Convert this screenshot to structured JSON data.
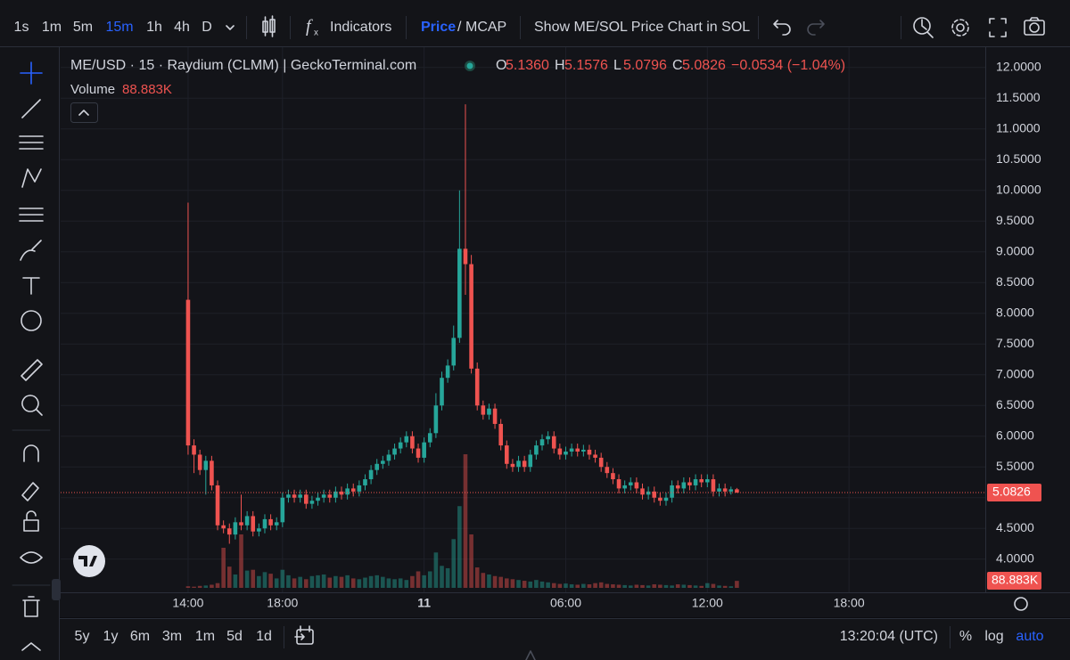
{
  "toolbar": {
    "intervals": [
      "1s",
      "1m",
      "5m",
      "15m",
      "1h",
      "4h",
      "D"
    ],
    "indicators": "Indicators",
    "price": "Price",
    "slash": "/",
    "mcap": "MCAP",
    "show_sol": "Show ME/SOL Price Chart in SOL"
  },
  "legend": {
    "symbol": "ME/USD · 15 · Raydium (CLMM) | GeckoTerminal.com",
    "o": "O",
    "open": "5.1360",
    "h": "H",
    "high": "5.1576",
    "l": "L",
    "low": "5.0796",
    "c": "C",
    "close": "5.0826",
    "change": "−0.0534 (−1.04%)",
    "volume": "Volume",
    "volume_value": "88.883K"
  },
  "chart_data": {
    "type": "candlestick",
    "up_color": "#26a69a",
    "down_color": "#ef5350",
    "open": [
      8.22,
      5.85,
      5.7,
      5.45,
      5.6,
      5.2,
      4.55,
      4.5,
      4.4,
      4.6,
      4.55,
      4.7,
      4.45,
      4.5,
      4.65,
      4.55,
      4.6,
      5.0,
      5.05,
      5.0,
      5.05,
      4.9,
      4.95,
      5.0,
      5.05,
      5.0,
      5.1,
      5.05,
      5.15,
      5.1,
      5.2,
      5.3,
      5.45,
      5.55,
      5.6,
      5.7,
      5.8,
      5.9,
      6.0,
      5.8,
      5.65,
      5.9,
      6.05,
      6.5,
      6.95,
      7.15,
      7.6,
      9.05,
      8.8,
      7.1,
      6.5,
      6.35,
      6.45,
      6.2,
      5.85,
      5.55,
      5.5,
      5.6,
      5.5,
      5.7,
      5.85,
      5.95,
      6.0,
      5.8,
      5.7,
      5.75,
      5.8,
      5.75,
      5.78,
      5.7,
      5.65,
      5.5,
      5.4,
      5.3,
      5.15,
      5.2,
      5.25,
      5.15,
      5.05,
      5.1,
      5.0,
      4.95,
      5.0,
      5.2,
      5.15,
      5.25,
      5.2,
      5.3,
      5.25,
      5.3,
      5.1,
      5.15,
      5.1,
      5.136
    ],
    "high": [
      9.8,
      5.95,
      5.78,
      5.68,
      5.68,
      5.28,
      4.63,
      4.58,
      4.68,
      5.05,
      4.78,
      4.78,
      4.58,
      4.73,
      4.73,
      4.68,
      5.08,
      5.13,
      5.13,
      5.13,
      5.13,
      5.03,
      5.08,
      5.13,
      5.13,
      5.18,
      5.18,
      5.23,
      5.23,
      5.28,
      5.38,
      5.53,
      5.63,
      5.68,
      5.78,
      5.88,
      5.98,
      6.08,
      6.08,
      5.88,
      5.98,
      6.13,
      6.7,
      7.05,
      7.25,
      7.8,
      10.0,
      11.4,
      8.95,
      7.2,
      6.58,
      6.53,
      6.53,
      6.28,
      5.93,
      5.63,
      5.68,
      5.68,
      5.78,
      5.93,
      6.03,
      6.08,
      6.08,
      5.88,
      5.83,
      5.88,
      5.88,
      5.86,
      5.86,
      5.78,
      5.73,
      5.58,
      5.48,
      5.38,
      5.28,
      5.33,
      5.33,
      5.23,
      5.18,
      5.18,
      5.08,
      5.08,
      5.28,
      5.28,
      5.33,
      5.33,
      5.38,
      5.38,
      5.38,
      5.38,
      5.23,
      5.23,
      5.18,
      5.1576
    ],
    "low": [
      5.7,
      5.4,
      5.37,
      5.05,
      5.12,
      4.47,
      4.42,
      4.25,
      4.32,
      4.47,
      4.47,
      4.37,
      4.37,
      4.42,
      4.47,
      4.47,
      4.52,
      4.92,
      4.92,
      4.92,
      4.82,
      4.82,
      4.87,
      4.92,
      4.92,
      4.92,
      4.97,
      4.97,
      5.02,
      5.02,
      5.12,
      5.22,
      5.37,
      5.47,
      5.52,
      5.62,
      5.72,
      5.82,
      5.72,
      5.57,
      5.57,
      5.82,
      5.97,
      6.42,
      6.87,
      7.07,
      7.52,
      8.3,
      7.02,
      6.42,
      6.27,
      6.27,
      6.12,
      5.77,
      5.47,
      5.42,
      5.42,
      5.42,
      5.42,
      5.62,
      5.77,
      5.87,
      5.72,
      5.62,
      5.62,
      5.67,
      5.67,
      5.67,
      5.62,
      5.57,
      5.42,
      5.32,
      5.22,
      5.07,
      5.07,
      5.12,
      5.07,
      4.97,
      4.97,
      4.92,
      4.87,
      4.87,
      4.92,
      5.07,
      5.07,
      5.12,
      5.12,
      5.17,
      5.17,
      5.02,
      5.02,
      5.02,
      5.05,
      5.0796
    ],
    "close": [
      5.85,
      5.7,
      5.45,
      5.6,
      5.2,
      4.55,
      4.5,
      4.4,
      4.6,
      4.55,
      4.7,
      4.45,
      4.5,
      4.65,
      4.55,
      4.6,
      5.0,
      5.05,
      5.0,
      5.05,
      4.9,
      4.95,
      5.0,
      5.05,
      5.0,
      5.1,
      5.05,
      5.15,
      5.1,
      5.2,
      5.3,
      5.45,
      5.55,
      5.6,
      5.7,
      5.8,
      5.9,
      6.0,
      5.8,
      5.65,
      5.9,
      6.05,
      6.5,
      6.95,
      7.15,
      7.6,
      9.05,
      8.8,
      7.1,
      6.5,
      6.35,
      6.45,
      6.2,
      5.85,
      5.55,
      5.5,
      5.6,
      5.5,
      5.7,
      5.85,
      5.95,
      6.0,
      5.8,
      5.7,
      5.75,
      5.8,
      5.75,
      5.78,
      5.7,
      5.65,
      5.5,
      5.4,
      5.3,
      5.15,
      5.2,
      5.25,
      5.15,
      5.05,
      5.1,
      5.0,
      4.95,
      5.0,
      5.2,
      5.15,
      5.25,
      5.2,
      5.3,
      5.25,
      5.3,
      5.1,
      5.15,
      5.1,
      5.136,
      5.0826
    ],
    "volume": [
      20,
      15,
      25,
      30,
      40,
      60,
      510,
      270,
      170,
      680,
      220,
      230,
      150,
      200,
      180,
      120,
      230,
      160,
      120,
      140,
      110,
      150,
      160,
      170,
      130,
      150,
      140,
      160,
      120,
      110,
      130,
      150,
      160,
      140,
      120,
      110,
      120,
      100,
      150,
      210,
      160,
      210,
      450,
      280,
      250,
      620,
      1040,
      1700,
      680,
      260,
      190,
      170,
      150,
      140,
      120,
      110,
      100,
      90,
      80,
      100,
      80,
      70,
      60,
      50,
      55,
      45,
      40,
      50,
      45,
      60,
      70,
      50,
      45,
      40,
      35,
      30,
      40,
      35,
      30,
      45,
      40,
      35,
      30,
      45,
      40,
      35,
      30,
      25,
      60,
      50,
      30,
      25,
      20,
      88.883
    ],
    "xlim": [
      -21.6,
      135.1
    ],
    "xticks": [
      {
        "value": 0,
        "label": "14:00"
      },
      {
        "value": 16,
        "label": "18:00"
      },
      {
        "value": 40,
        "label": "11"
      },
      {
        "value": 64,
        "label": "06:00"
      },
      {
        "value": 88,
        "label": "12:00"
      },
      {
        "value": 112,
        "label": "18:00"
      }
    ],
    "ylim": [
      3.46,
      12.33
    ],
    "yticks": [
      {
        "value": 4,
        "label": "4.0000"
      },
      {
        "value": 4.5,
        "label": "4.5000"
      },
      {
        "value": 5,
        "label": "5.0000"
      },
      {
        "value": 5.5,
        "label": "5.5000"
      },
      {
        "value": 6,
        "label": "6.0000"
      },
      {
        "value": 6.5,
        "label": "6.5000"
      },
      {
        "value": 7,
        "label": "7.0000"
      },
      {
        "value": 7.5,
        "label": "7.5000"
      },
      {
        "value": 8,
        "label": "8.0000"
      },
      {
        "value": 8.5,
        "label": "8.5000"
      },
      {
        "value": 9,
        "label": "9.0000"
      },
      {
        "value": 9.5,
        "label": "9.5000"
      },
      {
        "value": 10,
        "label": "10.0000"
      },
      {
        "value": 10.5,
        "label": "10.5000"
      },
      {
        "value": 11,
        "label": "11.0000"
      },
      {
        "value": 11.5,
        "label": "11.5000"
      },
      {
        "value": 12,
        "label": "12.0000"
      }
    ],
    "grid": true
  },
  "bottom": {
    "ranges": [
      "5y",
      "1y",
      "6m",
      "3m",
      "1m",
      "5d",
      "1d"
    ],
    "time": "13:20:04 (UTC)",
    "percent": "%",
    "log": "log",
    "auto": "auto"
  }
}
